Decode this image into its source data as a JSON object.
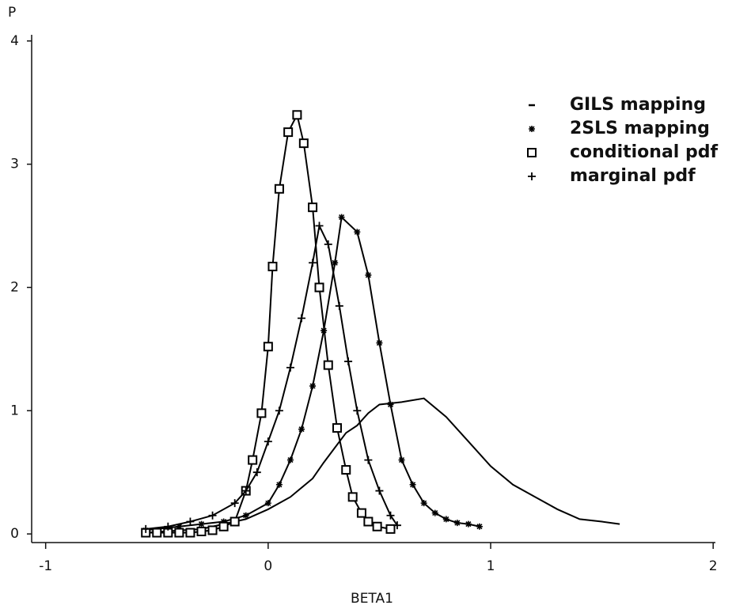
{
  "chart_data": {
    "type": "line",
    "y_label": "P",
    "x_label": "BETA1",
    "xlim": [
      -1.07,
      2.01
    ],
    "xticks": [
      -1,
      0,
      1,
      2
    ],
    "ylim": [
      -0.07,
      4.05
    ],
    "yticks": [
      0,
      1,
      2,
      3,
      4
    ],
    "legend": "upper right",
    "series": [
      {
        "name": "GILS mapping",
        "color": "#000000",
        "marker": "none",
        "x": [
          -0.55,
          -0.3,
          -0.1,
          0,
          0.1,
          0.2,
          0.25,
          0.3,
          0.35,
          0.4,
          0.45,
          0.5,
          0.6,
          0.7,
          0.8,
          0.9,
          1.0,
          1.1,
          1.2,
          1.3,
          1.4,
          1.5,
          1.58
        ],
        "values": [
          0.01,
          0.04,
          0.12,
          0.2,
          0.3,
          0.45,
          0.58,
          0.7,
          0.82,
          0.88,
          0.98,
          1.05,
          1.07,
          1.1,
          0.95,
          0.75,
          0.55,
          0.4,
          0.3,
          0.2,
          0.12,
          0.1,
          0.08
        ]
      },
      {
        "name": "2SLS mapping",
        "color": "#000000",
        "marker": "star",
        "x": [
          -0.55,
          -0.4,
          -0.3,
          -0.2,
          -0.1,
          0,
          0.05,
          0.1,
          0.15,
          0.2,
          0.25,
          0.3,
          0.33,
          0.4,
          0.45,
          0.5,
          0.55,
          0.6,
          0.65,
          0.7,
          0.75,
          0.8,
          0.85,
          0.9,
          0.95
        ],
        "values": [
          0.03,
          0.06,
          0.08,
          0.1,
          0.15,
          0.25,
          0.4,
          0.6,
          0.85,
          1.2,
          1.65,
          2.2,
          2.57,
          2.45,
          2.1,
          1.55,
          1.05,
          0.6,
          0.4,
          0.25,
          0.17,
          0.12,
          0.09,
          0.08,
          0.06
        ]
      },
      {
        "name": "conditional pdf",
        "color": "#000000",
        "marker": "square",
        "x": [
          -0.55,
          -0.5,
          -0.45,
          -0.4,
          -0.35,
          -0.3,
          -0.25,
          -0.2,
          -0.15,
          -0.1,
          -0.07,
          -0.03,
          0,
          0.02,
          0.05,
          0.09,
          0.13,
          0.16,
          0.2,
          0.23,
          0.27,
          0.31,
          0.35,
          0.38,
          0.42,
          0.45,
          0.49,
          0.55
        ],
        "values": [
          0.01,
          0.01,
          0.01,
          0.01,
          0.01,
          0.02,
          0.03,
          0.06,
          0.1,
          0.35,
          0.6,
          0.98,
          1.52,
          2.17,
          2.8,
          3.26,
          3.4,
          3.17,
          2.65,
          2.0,
          1.37,
          0.86,
          0.52,
          0.3,
          0.17,
          0.1,
          0.06,
          0.04
        ]
      },
      {
        "name": "marginal pdf",
        "color": "#000000",
        "marker": "plus",
        "x": [
          -0.55,
          -0.45,
          -0.35,
          -0.25,
          -0.15,
          -0.1,
          -0.05,
          0,
          0.05,
          0.1,
          0.15,
          0.2,
          0.23,
          0.27,
          0.32,
          0.36,
          0.4,
          0.45,
          0.5,
          0.55,
          0.58
        ],
        "values": [
          0.04,
          0.06,
          0.1,
          0.15,
          0.25,
          0.35,
          0.5,
          0.75,
          1.0,
          1.35,
          1.75,
          2.2,
          2.5,
          2.35,
          1.85,
          1.4,
          1.0,
          0.6,
          0.35,
          0.15,
          0.07
        ]
      }
    ]
  }
}
